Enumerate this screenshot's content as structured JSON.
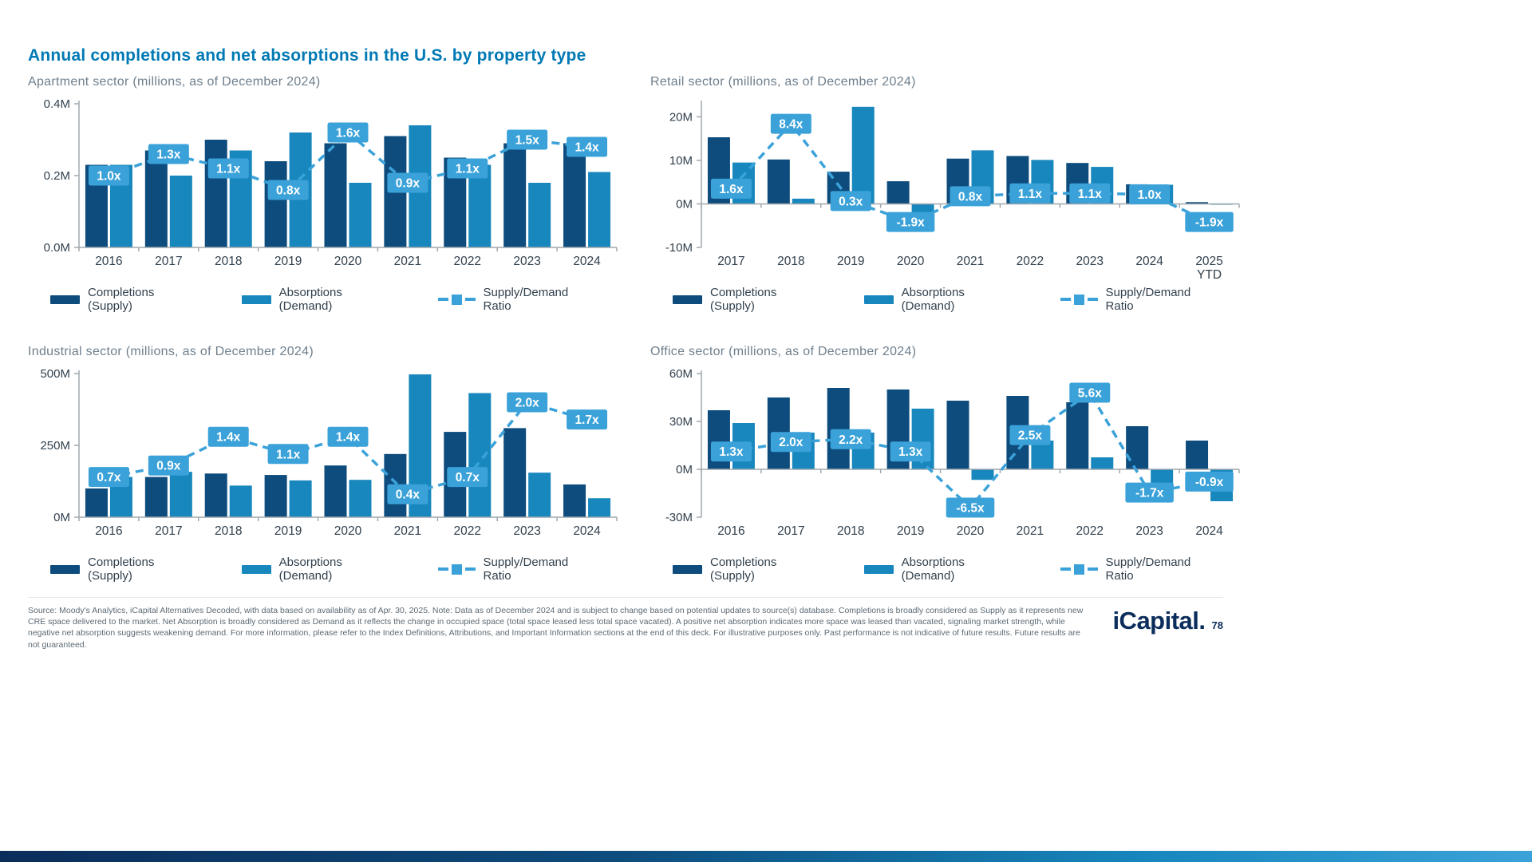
{
  "page": {
    "title": "Annual completions and net absorptions in the U.S. by property type",
    "footer": {
      "source": "Source: Moody's Analytics, iCapital Alternatives Decoded, with data based on availability as of Apr. 30, 2025. Note: Data as of December 2024 and is subject to change based on potential updates to source(s) database. Completions is broadly considered as Supply as it represents new CRE space delivered to the market. Net Absorption is broadly considered as Demand as it reflects the change in occupied space (total space leased less total space vacated). A positive net absorption indicates more space was leased than vacated, signaling market strength, while negative net absorption suggests weakening demand. For more information, please refer to the Index Definitions, Attributions, and Important Information sections at the end of this deck. For illustrative purposes only. Past performance is not indicative of future results. Future results are not guaranteed.",
      "brand": "iCapital.",
      "page_number": "78"
    },
    "colors": {
      "supply": "#0d4c7d",
      "demand": "#1787bd",
      "ratio": "#3ba2d9",
      "title": "#0079b4",
      "subtitle": "#6e7f8d",
      "axis_text": "#31404d",
      "axis_line": "#9fa8ae",
      "footer_text": "#5d6a74",
      "brand_navy": "#0b2d5b"
    }
  },
  "legend": {
    "supply": "Completions (Supply)",
    "demand": "Absorptions (Demand)",
    "ratio": "Supply/Demand Ratio"
  },
  "chart_data": [
    {
      "type": "bar",
      "id": "apartment",
      "title": "Apartment sector (millions, as of December 2024)",
      "categories": [
        "2016",
        "2017",
        "2018",
        "2019",
        "2020",
        "2021",
        "2022",
        "2023",
        "2024"
      ],
      "ylim": [
        0,
        0.4
      ],
      "yticks": [
        {
          "v": 0,
          "label": "0.0M"
        },
        {
          "v": 0.2,
          "label": "0.2M"
        },
        {
          "v": 0.4,
          "label": "0.4M"
        }
      ],
      "series": [
        {
          "name": "Completions (Supply)",
          "values": [
            0.23,
            0.27,
            0.3,
            0.24,
            0.29,
            0.31,
            0.25,
            0.29,
            0.29
          ]
        },
        {
          "name": "Absorptions (Demand)",
          "values": [
            0.23,
            0.2,
            0.27,
            0.32,
            0.18,
            0.34,
            0.23,
            0.18,
            0.21
          ]
        },
        {
          "name": "Supply/Demand Ratio",
          "values": [
            1.0,
            1.3,
            1.1,
            0.8,
            1.6,
            0.9,
            1.1,
            1.5,
            1.4
          ],
          "labels": [
            "1.0x",
            "1.3x",
            "1.1x",
            "0.8x",
            "1.6x",
            "0.9x",
            "1.1x",
            "1.5x",
            "1.4x"
          ]
        }
      ]
    },
    {
      "type": "bar",
      "id": "retail",
      "title": "Retail sector (millions, as of December 2024)",
      "categories": [
        "2017",
        "2018",
        "2019",
        "2020",
        "2021",
        "2022",
        "2023",
        "2024",
        "2025 YTD"
      ],
      "ylim": [
        -10,
        23
      ],
      "yticks": [
        {
          "v": -10,
          "label": "-10M"
        },
        {
          "v": 0,
          "label": "0M"
        },
        {
          "v": 10,
          "label": "10M"
        },
        {
          "v": 20,
          "label": "20M"
        }
      ],
      "series": [
        {
          "name": "Completions (Supply)",
          "values": [
            15.3,
            10.2,
            7.4,
            5.2,
            10.4,
            11.0,
            9.4,
            4.5,
            0.4
          ]
        },
        {
          "name": "Absorptions (Demand)",
          "values": [
            9.5,
            1.2,
            22.3,
            -2.7,
            12.3,
            10.1,
            8.5,
            4.4,
            -0.2
          ]
        },
        {
          "name": "Supply/Demand Ratio",
          "values": [
            1.6,
            8.4,
            0.3,
            -1.9,
            0.8,
            1.1,
            1.1,
            1.0,
            -1.9
          ],
          "labels": [
            "1.6x",
            "8.4x",
            "0.3x",
            "-1.9x",
            "0.8x",
            "1.1x",
            "1.1x",
            "1.0x",
            "-1.9x"
          ]
        }
      ]
    },
    {
      "type": "bar",
      "id": "industrial",
      "title": "Industrial sector (millions, as of December 2024)",
      "categories": [
        "2016",
        "2017",
        "2018",
        "2019",
        "2020",
        "2021",
        "2022",
        "2023",
        "2024"
      ],
      "ylim": [
        0,
        500
      ],
      "yticks": [
        {
          "v": 0,
          "label": "0M"
        },
        {
          "v": 250,
          "label": "250M"
        },
        {
          "v": 500,
          "label": "500M"
        }
      ],
      "series": [
        {
          "name": "Completions (Supply)",
          "values": [
            100,
            140,
            152,
            147,
            180,
            220,
            297,
            310,
            114
          ]
        },
        {
          "name": "Absorptions (Demand)",
          "values": [
            140,
            158,
            110,
            128,
            130,
            497,
            432,
            155,
            66
          ]
        },
        {
          "name": "Supply/Demand Ratio",
          "values": [
            0.7,
            0.9,
            1.4,
            1.1,
            1.4,
            0.4,
            0.7,
            2.0,
            1.7
          ],
          "labels": [
            "0.7x",
            "0.9x",
            "1.4x",
            "1.1x",
            "1.4x",
            "0.4x",
            "0.7x",
            "2.0x",
            "1.7x"
          ]
        }
      ]
    },
    {
      "type": "bar",
      "id": "office",
      "title": "Office sector (millions, as of December 2024)",
      "categories": [
        "2016",
        "2017",
        "2018",
        "2019",
        "2020",
        "2021",
        "2022",
        "2023",
        "2024"
      ],
      "ylim": [
        -30,
        60
      ],
      "yticks": [
        {
          "v": -30,
          "label": "-30M"
        },
        {
          "v": 0,
          "label": "0M"
        },
        {
          "v": 30,
          "label": "30M"
        },
        {
          "v": 60,
          "label": "60M"
        }
      ],
      "series": [
        {
          "name": "Completions (Supply)",
          "values": [
            37,
            45,
            51,
            50,
            43,
            46,
            42,
            27,
            18
          ]
        },
        {
          "name": "Absorptions (Demand)",
          "values": [
            29,
            23,
            23,
            38,
            -6.6,
            18,
            7.5,
            -16,
            -20
          ]
        },
        {
          "name": "Supply/Demand Ratio",
          "values": [
            1.3,
            2.0,
            2.2,
            1.3,
            -6.5,
            2.5,
            5.6,
            -1.7,
            -0.9
          ],
          "labels": [
            "1.3x",
            "2.0x",
            "2.2x",
            "1.3x",
            "-6.5x",
            "2.5x",
            "5.6x",
            "-1.7x",
            "-0.9x"
          ]
        }
      ]
    }
  ]
}
